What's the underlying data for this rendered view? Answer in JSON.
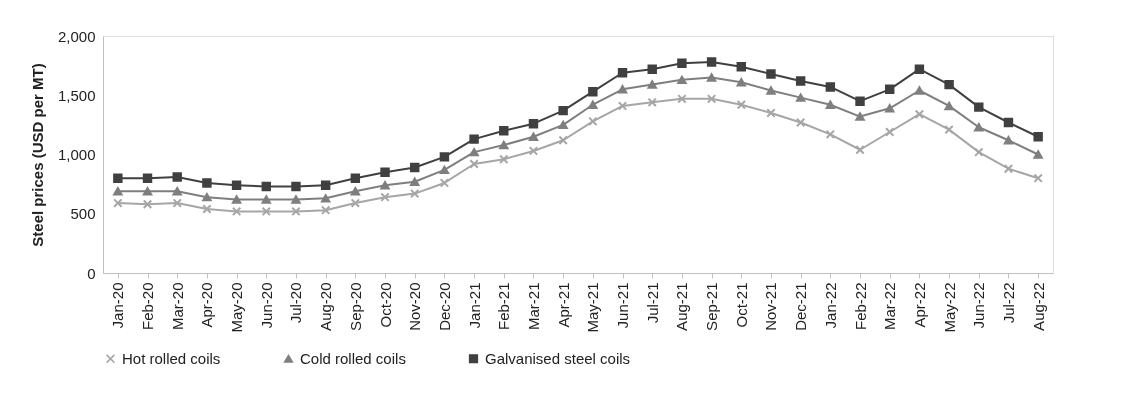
{
  "chart_data": {
    "type": "line",
    "ylabel": "Steel prices (USD per MT)",
    "categories": [
      "Jan-20",
      "Feb-20",
      "Mar-20",
      "Apr-20",
      "May-20",
      "Jun-20",
      "Jul-20",
      "Aug-20",
      "Sep-20",
      "Oct-20",
      "Nov-20",
      "Dec-20",
      "Jan-21",
      "Feb-21",
      "Mar-21",
      "Apr-21",
      "May-21",
      "Jun-21",
      "Jul-21",
      "Aug-21",
      "Sep-21",
      "Oct-21",
      "Nov-21",
      "Dec-21",
      "Jan-22",
      "Feb-22",
      "Mar-22",
      "Apr-22",
      "May-22",
      "Jun-22",
      "Jul-22",
      "Aug-22"
    ],
    "series": [
      {
        "name": "Hot rolled coils",
        "color": "#a6a6a6",
        "marker": "cross",
        "values": [
          590,
          580,
          590,
          540,
          520,
          520,
          520,
          530,
          590,
          640,
          670,
          760,
          920,
          960,
          1030,
          1120,
          1280,
          1410,
          1440,
          1470,
          1470,
          1420,
          1350,
          1270,
          1170,
          1040,
          1190,
          1340,
          1210,
          1020,
          880,
          800
        ]
      },
      {
        "name": "Cold rolled coils",
        "color": "#7f7f7f",
        "marker": "triangle",
        "values": [
          690,
          690,
          690,
          640,
          620,
          620,
          620,
          630,
          690,
          740,
          770,
          870,
          1020,
          1080,
          1150,
          1250,
          1420,
          1550,
          1590,
          1630,
          1650,
          1610,
          1540,
          1480,
          1420,
          1320,
          1390,
          1540,
          1410,
          1230,
          1120,
          1000
        ]
      },
      {
        "name": "Galvanised steel coils",
        "color": "#404040",
        "marker": "square",
        "values": [
          800,
          800,
          810,
          760,
          740,
          730,
          730,
          740,
          800,
          850,
          890,
          980,
          1130,
          1200,
          1260,
          1370,
          1530,
          1690,
          1720,
          1770,
          1780,
          1740,
          1680,
          1620,
          1570,
          1450,
          1550,
          1720,
          1590,
          1400,
          1270,
          1150
        ]
      }
    ],
    "ylim": [
      0,
      2000
    ],
    "yticks": [
      0,
      500,
      {
        "value": 1000,
        "label": "1,000"
      },
      {
        "value": 1500,
        "label": "1,500"
      },
      {
        "value": 2000,
        "label": "2,000"
      }
    ],
    "grid": false,
    "legend": "bottom",
    "line_style": "solid"
  }
}
